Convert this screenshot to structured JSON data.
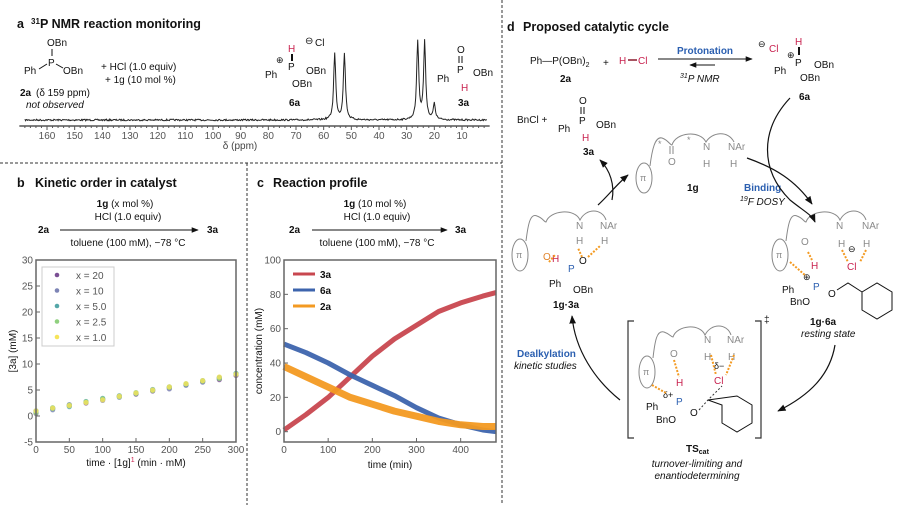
{
  "panel_a": {
    "letter": "a",
    "title_sup": "31",
    "title": "P NMR reaction monitoring",
    "reagents": [
      "+ HCl (1.0 equiv)",
      "+ 1g (10 mol %)"
    ],
    "compound_2a": {
      "label": "2a",
      "shift_note": "(δ 159 ppm)",
      "status": "not observed",
      "atoms": {
        "obn_top": "OBn",
        "p": "P",
        "ph": "Ph",
        "obn_right": "OBn"
      }
    },
    "compound_6a": {
      "label": "6a",
      "atoms": {
        "h": "H",
        "p": "P",
        "ph": "Ph",
        "obn1": "OBn",
        "obn2": "OBn",
        "cl": "Cl",
        "minus": "⊖",
        "plus": "⊕"
      }
    },
    "compound_3a": {
      "label": "3a",
      "atoms": {
        "o": "O",
        "p": "P",
        "ph": "Ph",
        "obn": "OBn",
        "h": "H"
      }
    }
  },
  "panel_b": {
    "letter": "b",
    "title": "Kinetic order in catalyst",
    "scheme": {
      "above_1_bold": "1g",
      "above_1_rest": " (x mol %)",
      "above_2": "HCl (1.0 equiv)",
      "below": "toluene (100 mM), −78 °C",
      "reactant": "2a",
      "product": "3a"
    }
  },
  "panel_c": {
    "letter": "c",
    "title": "Reaction profile",
    "scheme": {
      "above_1_bold": "1g",
      "above_1_rest": " (10 mol %)",
      "above_2": "HCl (1.0 equiv)",
      "below": "toluene (100 mM), −78 °C",
      "reactant": "2a",
      "product": "3a"
    }
  },
  "panel_d": {
    "letter": "d",
    "title": "Proposed catalytic cycle",
    "eq_left": "Ph—P(OBn)",
    "eq_left_sub": "2",
    "plus": "+",
    "hcl_h": "H",
    "hcl_cl": "Cl",
    "label_2a": "2a",
    "protonation": "Protonation",
    "nmr_sup": "31",
    "nmr": "P NMR",
    "label_6a": "6a",
    "bncl": "BnCl",
    "label_3a": "3a",
    "label_1g": "1g",
    "binding": "Binding",
    "dosy_sup": "19",
    "dosy": "F DOSY",
    "label_1g3a": "1g·3a",
    "label_1g6a": "1g·6a",
    "resting_state": "resting state",
    "dealkylation": "Dealkylation",
    "kinetic_studies": "kinetic studies",
    "ts_label": "TS",
    "ts_sub": "cat",
    "ts_dagger": "‡",
    "ts_note_1": "turnover-limiting and",
    "ts_note_2": "enantiodetermining",
    "atoms": {
      "o": "O",
      "n": "N",
      "nar": "NAr",
      "h": "H",
      "p": "P",
      "ph": "Ph",
      "obn": "OBn",
      "bno": "BnO",
      "cl": "Cl",
      "pi": "π",
      "star": "*",
      "dplus": "δ+",
      "dminus": "δ−",
      "plus": "⊕",
      "minus": "⊖"
    }
  },
  "colors": {
    "red": "#c8214e",
    "blue": "#2b5fb0",
    "orange": "#f39a22",
    "gray": "#8a8a8a"
  },
  "chart_data": [
    {
      "id": "nmr",
      "type": "line",
      "xlabel": "δ (ppm)",
      "xlim": [
        170,
        0
      ],
      "x_reversed": true,
      "xticks": [
        160,
        150,
        140,
        130,
        120,
        110,
        100,
        90,
        80,
        70,
        60,
        50,
        40,
        30,
        20,
        10
      ],
      "peaks": [
        {
          "ppm": 56,
          "relative_height": 0.85
        },
        {
          "ppm": 52.5,
          "relative_height": 0.85
        },
        {
          "ppm": 26,
          "relative_height": 1.0
        },
        {
          "ppm": 23.5,
          "relative_height": 1.0
        },
        {
          "ppm": 20,
          "relative_height": 0.2
        }
      ]
    },
    {
      "id": "kinetic_order",
      "type": "scatter",
      "xlabel": "time · [1g]",
      "xlabel_sup": "1",
      "xlabel_unit": " (min · mM)",
      "ylabel": "[3a] (mM)",
      "xlim": [
        0,
        300
      ],
      "ylim": [
        -5,
        30
      ],
      "xticks": [
        0,
        50,
        100,
        150,
        200,
        250,
        300
      ],
      "yticks": [
        -5,
        0,
        5,
        10,
        15,
        20,
        25,
        30
      ],
      "legend": "top-left",
      "grid": false,
      "series": [
        {
          "name": "x = 20",
          "color": "#7b4f94",
          "x": [
            0,
            25,
            50,
            75,
            100,
            125,
            150,
            175,
            200,
            225,
            250,
            275,
            300
          ],
          "y": [
            0.5,
            1.5,
            2.0,
            2.5,
            3.2,
            3.8,
            4.2,
            4.8,
            5.4,
            6.0,
            6.6,
            7.0,
            7.8
          ]
        },
        {
          "name": "x = 10",
          "color": "#7d84b5",
          "x": [
            0,
            25,
            50,
            75,
            100,
            125,
            150,
            175,
            200,
            225,
            250,
            275,
            300
          ],
          "y": [
            0.8,
            1.2,
            2.2,
            2.6,
            3.0,
            3.6,
            4.4,
            5.0,
            5.2,
            5.9,
            6.5,
            7.3,
            8.0
          ]
        },
        {
          "name": "x = 5.0",
          "color": "#55a7a8",
          "x": [
            0,
            25,
            50,
            75,
            100,
            125,
            150,
            175,
            200,
            225,
            250,
            275,
            300
          ],
          "y": [
            1.0,
            1.4,
            1.8,
            2.8,
            3.4,
            3.9,
            4.3,
            5.1,
            5.6,
            6.1,
            6.8,
            7.4,
            8.2
          ]
        },
        {
          "name": "x = 2.5",
          "color": "#8fd07e",
          "x": [
            0,
            25,
            50,
            75,
            100,
            125,
            150,
            175,
            200,
            225,
            250,
            275,
            300
          ],
          "y": [
            0.6,
            1.6,
            2.1,
            2.7,
            3.3,
            3.7,
            4.5,
            4.9,
            5.5,
            6.2,
            6.7,
            7.2,
            8.1
          ]
        },
        {
          "name": "x = 1.0",
          "color": "#f6e45a",
          "x": [
            0,
            25,
            50,
            75,
            100,
            125,
            150,
            175,
            200,
            225,
            250,
            275,
            300
          ],
          "y": [
            1.0,
            1.5,
            2.0,
            2.6,
            3.1,
            3.8,
            4.4,
            5.0,
            5.6,
            6.2,
            6.8,
            7.5,
            8.0
          ]
        }
      ]
    },
    {
      "id": "reaction_profile",
      "type": "line",
      "xlabel": "time (min)",
      "ylabel": "concentration (mM)",
      "xlim": [
        0,
        480
      ],
      "ylim": [
        -6,
        100
      ],
      "xticks": [
        0,
        100,
        200,
        300,
        400
      ],
      "yticks": [
        0,
        20,
        40,
        60,
        80,
        100
      ],
      "legend": "top-left",
      "grid": false,
      "x": [
        0,
        50,
        100,
        150,
        200,
        250,
        300,
        350,
        400,
        450,
        480
      ],
      "series": [
        {
          "name": "3a",
          "color": "#c8474f",
          "values": [
            1,
            10,
            20,
            32,
            44,
            54,
            62,
            70,
            75,
            79,
            81
          ]
        },
        {
          "name": "6a",
          "color": "#3d64ad",
          "values": [
            51,
            46,
            40,
            33,
            27,
            21,
            14,
            8,
            4,
            1,
            0
          ]
        },
        {
          "name": "2a",
          "color": "#f39a22",
          "values": [
            38,
            32,
            26,
            20,
            16,
            12,
            9,
            6,
            4,
            3,
            3
          ]
        }
      ]
    }
  ]
}
